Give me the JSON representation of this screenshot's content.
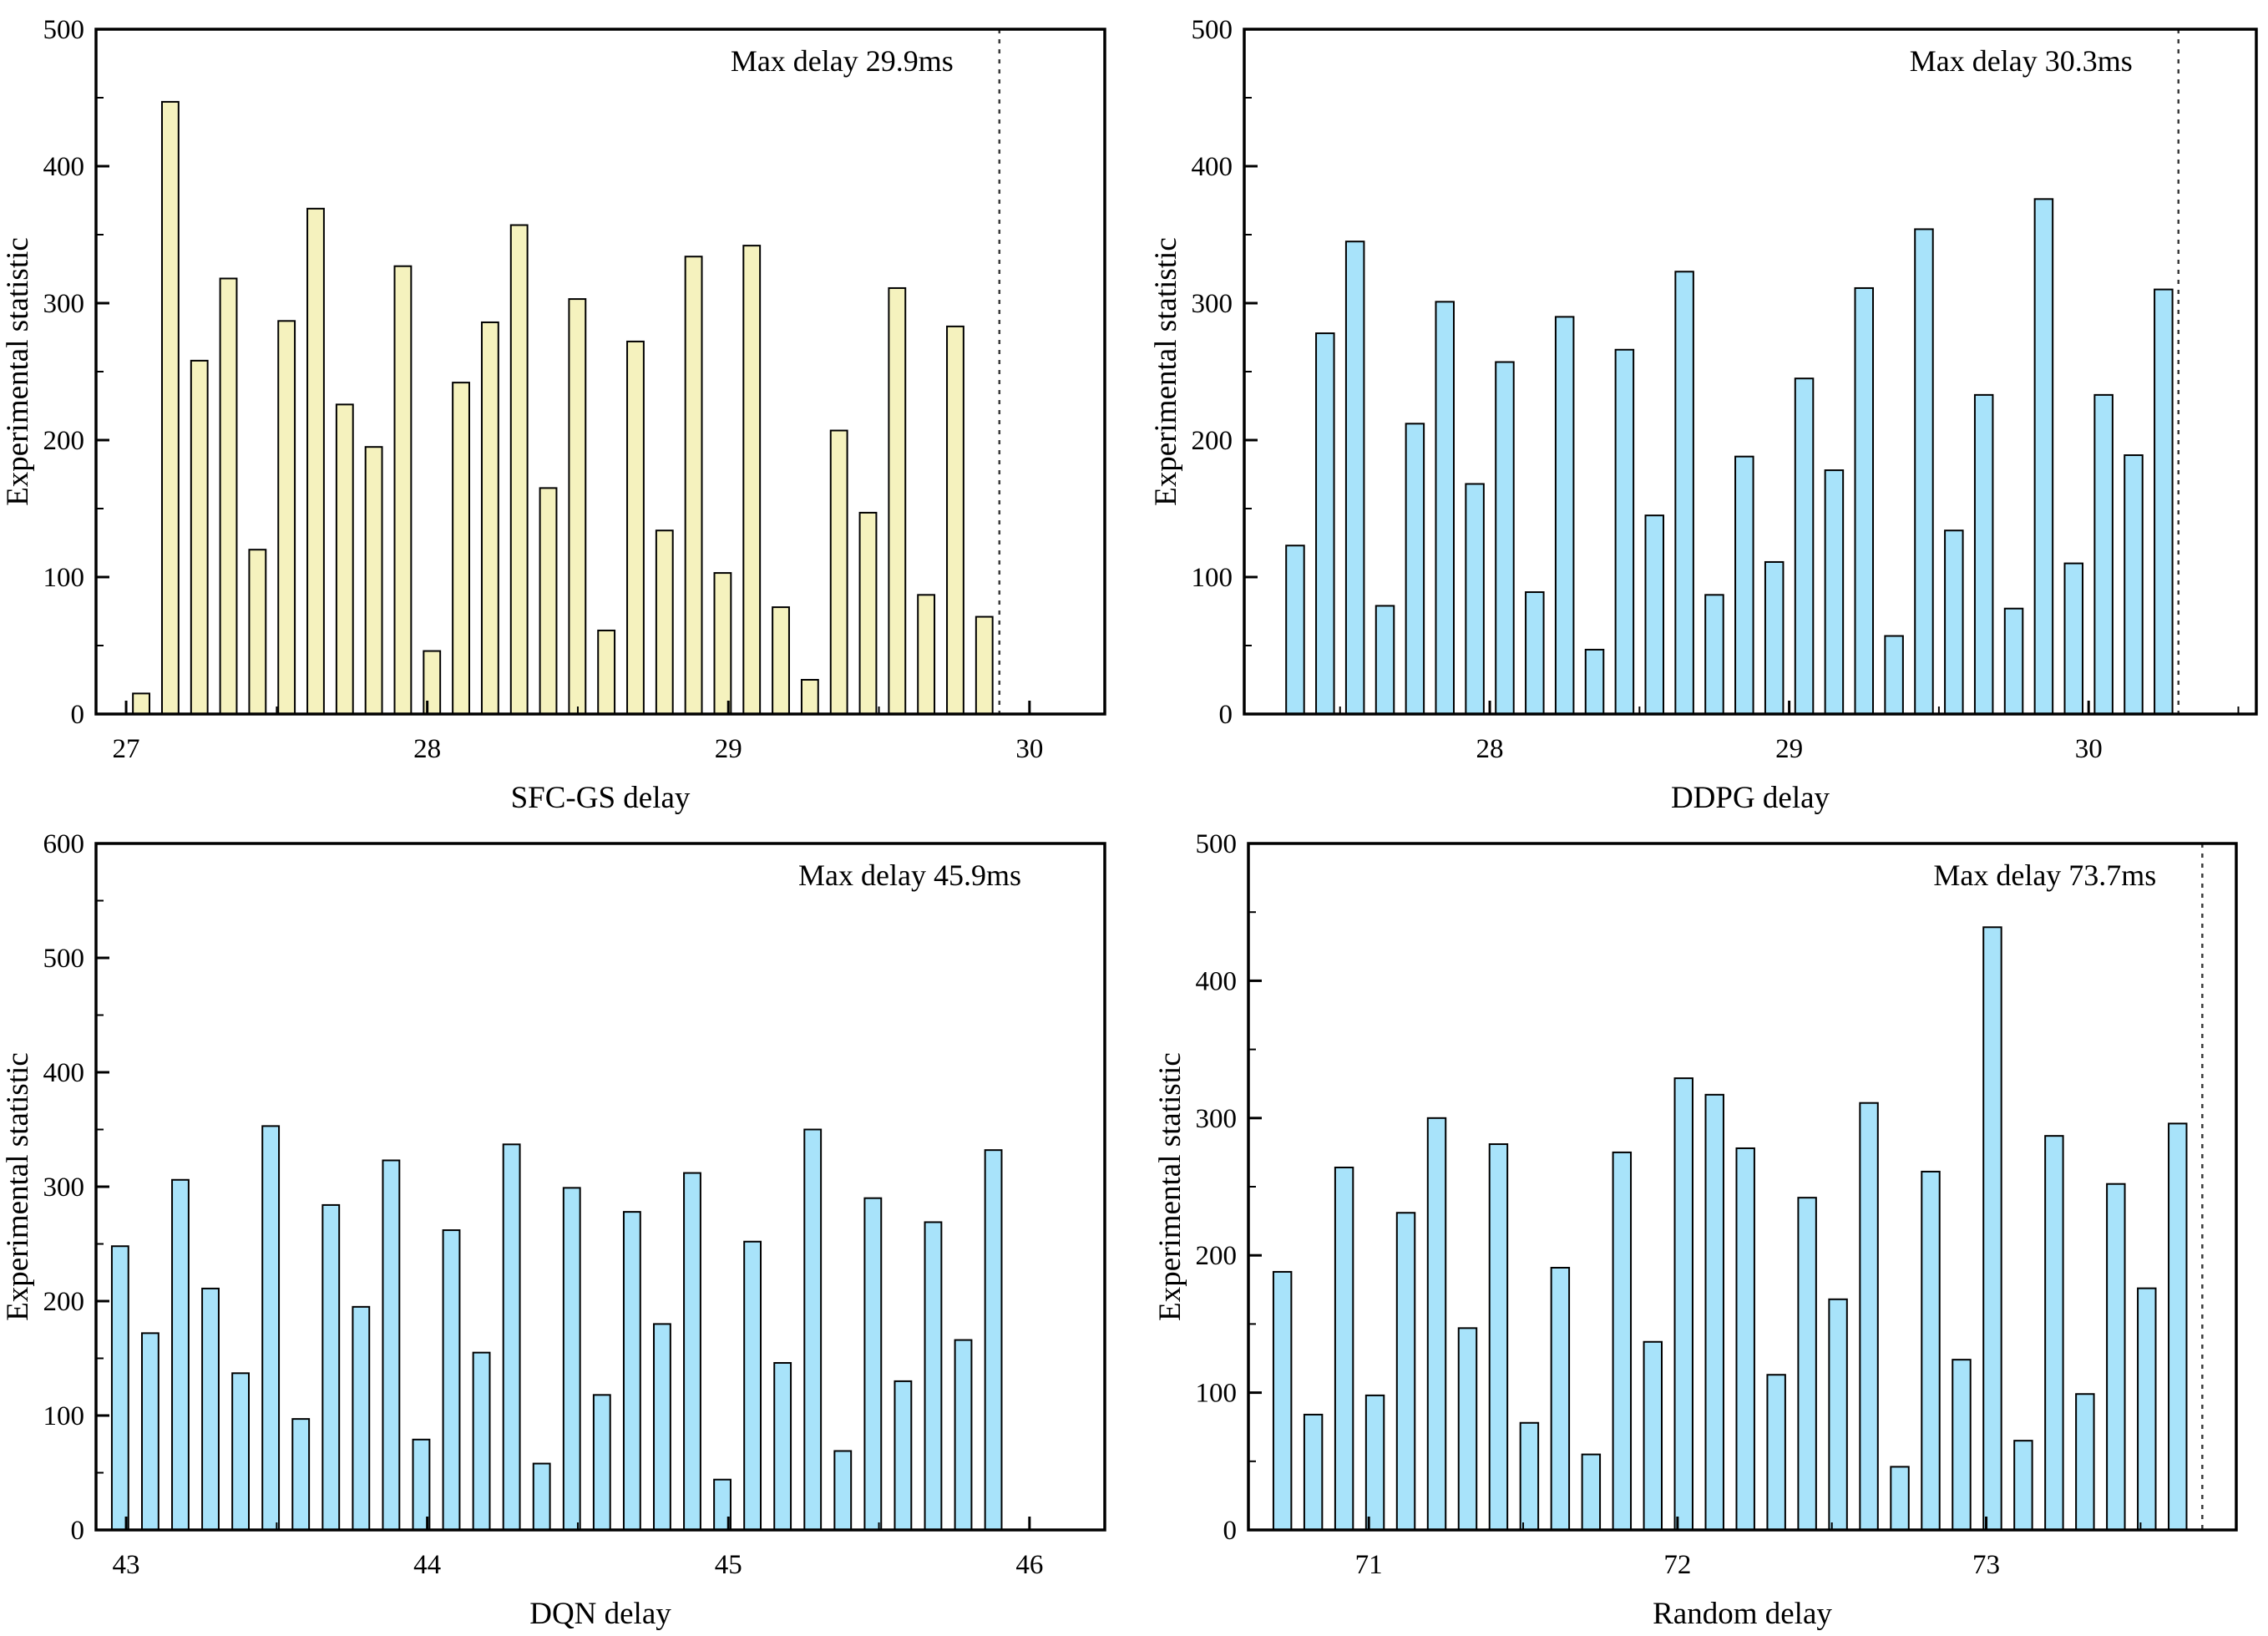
{
  "figure": {
    "background": "#ffffff",
    "frame_color": "#000000",
    "dashed_line_color": "#3a3a3a",
    "ylabel": "Experimental statistic"
  },
  "chart_data": [
    {
      "type": "bar",
      "panel": "top-left",
      "title": "",
      "xlabel": "SFC-GS delay",
      "ylabel": "Experimental statistic",
      "annotation": "Max delay 29.9ms",
      "max_delay_ms": 29.9,
      "bar_fill": "#f5f2be",
      "bar_stroke": "#000000",
      "xlim": [
        26.9,
        30.25
      ],
      "ylim": [
        0,
        500
      ],
      "x_major_ticks": [
        27,
        28,
        29,
        30
      ],
      "x_minor_ticks": [
        27.5,
        28.5,
        29.5
      ],
      "y_major_tick_step": 100,
      "y_minor_tick_step": 50,
      "dashed_line_x": 29.9,
      "bin_center_first": 27.05,
      "bin_center_last": 29.85,
      "bar_width_units": 0.055,
      "grid": false,
      "values": [
        15,
        447,
        258,
        318,
        120,
        287,
        369,
        226,
        195,
        327,
        46,
        242,
        286,
        357,
        165,
        303,
        61,
        272,
        134,
        334,
        103,
        342,
        78,
        25,
        207,
        147,
        311,
        87,
        283,
        71
      ]
    },
    {
      "type": "bar",
      "panel": "top-right",
      "title": "",
      "xlabel": "DDPG delay",
      "ylabel": "Experimental statistic",
      "annotation": "Max delay 30.3ms",
      "max_delay_ms": 30.3,
      "bar_fill": "#a8e3fa",
      "bar_stroke": "#000000",
      "xlim": [
        27.18,
        30.56
      ],
      "ylim": [
        0,
        500
      ],
      "x_major_ticks": [
        28,
        29,
        30
      ],
      "x_minor_ticks": [
        27.5,
        28.5,
        29.5,
        30.5
      ],
      "y_major_tick_step": 100,
      "y_minor_tick_step": 50,
      "dashed_line_x": 30.3,
      "bin_center_first": 27.35,
      "bin_center_last": 30.25,
      "bar_width_units": 0.06,
      "grid": false,
      "values": [
        123,
        278,
        345,
        79,
        212,
        301,
        168,
        257,
        89,
        290,
        47,
        266,
        145,
        323,
        87,
        188,
        111,
        245,
        178,
        311,
        57,
        354,
        134,
        233,
        77,
        376,
        110,
        233,
        189,
        310
      ]
    },
    {
      "type": "bar",
      "panel": "bottom-left",
      "title": "",
      "xlabel": "DQN delay",
      "ylabel": "Experimental statistic",
      "annotation": "Max delay 45.9ms",
      "max_delay_ms": 45.9,
      "bar_fill": "#a8e3fa",
      "bar_stroke": "#000000",
      "xlim": [
        42.9,
        46.25
      ],
      "ylim": [
        0,
        600
      ],
      "x_major_ticks": [
        43,
        44,
        45,
        46
      ],
      "x_minor_ticks": [
        43.5,
        44.5,
        45.5
      ],
      "y_major_tick_step": 100,
      "y_minor_tick_step": 50,
      "dashed_line_x": null,
      "bin_center_first": 42.98,
      "bin_center_last": 45.88,
      "bar_width_units": 0.055,
      "grid": false,
      "values": [
        248,
        172,
        306,
        211,
        137,
        353,
        97,
        284,
        195,
        323,
        79,
        262,
        155,
        337,
        58,
        299,
        118,
        278,
        180,
        312,
        44,
        252,
        146,
        350,
        69,
        290,
        130,
        269,
        166,
        332
      ]
    },
    {
      "type": "bar",
      "panel": "bottom-right",
      "title": "",
      "xlabel": "Random delay",
      "ylabel": "Experimental statistic",
      "annotation": "Max delay 73.7ms",
      "max_delay_ms": 73.7,
      "bar_fill": "#a8e3fa",
      "bar_stroke": "#000000",
      "xlim": [
        70.61,
        73.81
      ],
      "ylim": [
        0,
        500
      ],
      "x_major_ticks": [
        71,
        72,
        73
      ],
      "x_minor_ticks": [
        71.5,
        72.5,
        73.5
      ],
      "y_major_tick_step": 100,
      "y_minor_tick_step": 50,
      "dashed_line_x": 73.7,
      "bin_center_first": 70.72,
      "bin_center_last": 73.62,
      "bar_width_units": 0.058,
      "grid": false,
      "values": [
        188,
        84,
        264,
        98,
        231,
        300,
        147,
        281,
        78,
        191,
        55,
        275,
        137,
        329,
        317,
        278,
        113,
        242,
        168,
        311,
        46,
        261,
        124,
        439,
        65,
        287,
        99,
        252,
        176,
        296
      ]
    }
  ]
}
